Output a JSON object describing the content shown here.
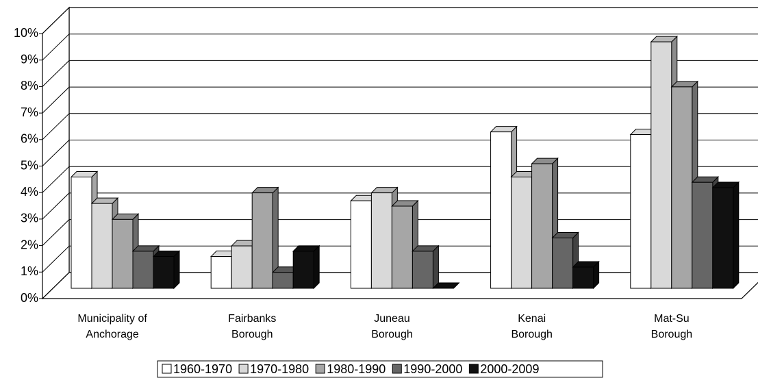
{
  "chart_data": {
    "type": "bar3d",
    "categories": [
      [
        "Municipality of",
        "Anchorage"
      ],
      [
        "Fairbanks",
        "Borough"
      ],
      [
        "Juneau",
        "Borough"
      ],
      [
        "Kenai",
        "Borough"
      ],
      [
        "Mat-Su",
        "Borough"
      ]
    ],
    "series": [
      {
        "name": "1960-1970",
        "color": "#ffffff",
        "values": [
          4.2,
          1.2,
          3.3,
          5.9,
          5.8
        ]
      },
      {
        "name": "1970-1980",
        "color": "#d9d9d9",
        "values": [
          3.2,
          1.6,
          3.6,
          4.2,
          9.3
        ]
      },
      {
        "name": "1980-1990",
        "color": "#a6a6a6",
        "values": [
          2.6,
          3.6,
          3.1,
          4.7,
          7.6
        ]
      },
      {
        "name": "1990-2000",
        "color": "#666666",
        "values": [
          1.4,
          0.6,
          1.4,
          1.9,
          4.0
        ]
      },
      {
        "name": "2000-2009",
        "color": "#111111",
        "values": [
          1.2,
          1.4,
          0,
          0.8,
          3.8
        ]
      }
    ],
    "ylim": [
      0,
      10
    ],
    "yticks": [
      {
        "value": 0,
        "label": "0%"
      },
      {
        "value": 1,
        "label": "1%"
      },
      {
        "value": 2,
        "label": "2%"
      },
      {
        "value": 3,
        "label": "3%"
      },
      {
        "value": 4,
        "label": "4%"
      },
      {
        "value": 5,
        "label": "5%"
      },
      {
        "value": 6,
        "label": "6%"
      },
      {
        "value": 7,
        "label": "7%"
      },
      {
        "value": 8,
        "label": "8%"
      },
      {
        "value": 9,
        "label": "9%"
      },
      {
        "value": 10,
        "label": "10%"
      }
    ],
    "grid": true,
    "legend": "bottom"
  }
}
